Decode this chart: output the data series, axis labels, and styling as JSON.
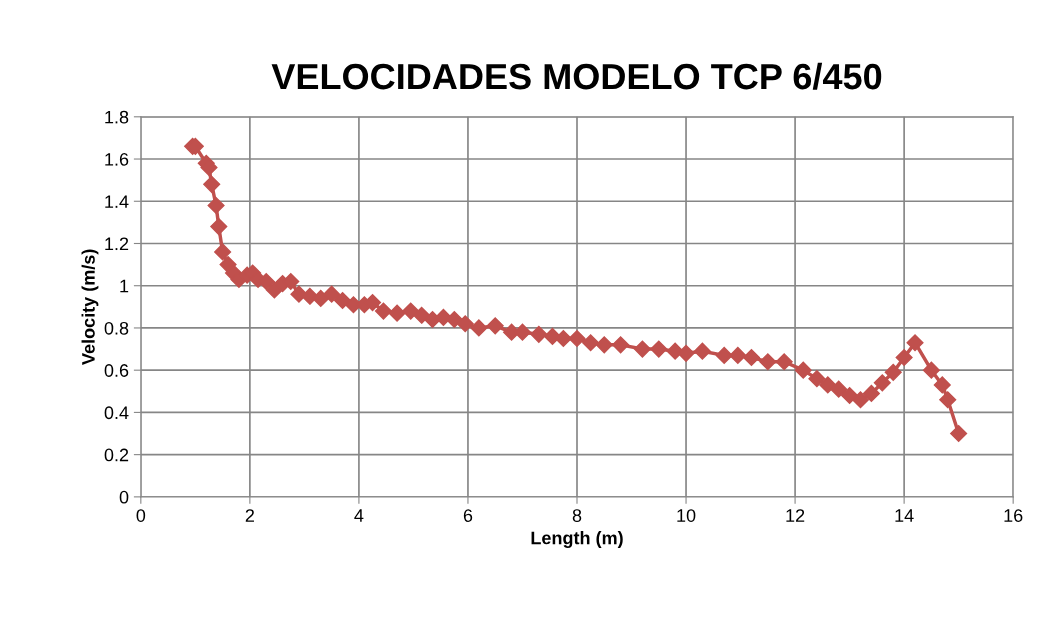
{
  "chart_data": {
    "type": "line",
    "title": "VELOCIDADES MODELO TCP 6/450",
    "xlabel": "Length (m)",
    "ylabel": "Velocity (m/s)",
    "xlim": [
      0,
      16
    ],
    "xticks": [
      0,
      2,
      4,
      6,
      8,
      10,
      12,
      14,
      16
    ],
    "ylim": [
      0,
      1.8
    ],
    "yticks": [
      0,
      0.2,
      0.4,
      0.6,
      0.8,
      1,
      1.2,
      1.4,
      1.6,
      1.8
    ],
    "grid": true,
    "legend": false,
    "marker": "diamond",
    "line_style": "solid",
    "series": [
      {
        "color": "#c0504d",
        "x": [
          0.95,
          1.0,
          1.2,
          1.25,
          1.3,
          1.38,
          1.43,
          1.5,
          1.6,
          1.7,
          1.8,
          1.95,
          2.05,
          2.15,
          2.3,
          2.45,
          2.6,
          2.75,
          2.9,
          3.1,
          3.3,
          3.5,
          3.7,
          3.9,
          4.1,
          4.25,
          4.45,
          4.7,
          4.95,
          5.15,
          5.35,
          5.55,
          5.75,
          5.95,
          6.2,
          6.5,
          6.8,
          7.0,
          7.3,
          7.55,
          7.75,
          8.0,
          8.25,
          8.5,
          8.8,
          9.2,
          9.5,
          9.8,
          10.0,
          10.3,
          10.7,
          10.95,
          11.2,
          11.5,
          11.8,
          12.15,
          12.4,
          12.6,
          12.8,
          13.0,
          13.2,
          13.4,
          13.6,
          13.8,
          14.0,
          14.2,
          14.5,
          14.7,
          14.8,
          15.0
        ],
        "values": [
          1.66,
          1.66,
          1.58,
          1.56,
          1.48,
          1.38,
          1.28,
          1.16,
          1.1,
          1.06,
          1.03,
          1.05,
          1.06,
          1.03,
          1.02,
          0.98,
          1.01,
          1.02,
          0.96,
          0.95,
          0.94,
          0.96,
          0.93,
          0.91,
          0.91,
          0.92,
          0.88,
          0.87,
          0.88,
          0.86,
          0.84,
          0.85,
          0.84,
          0.82,
          0.8,
          0.81,
          0.78,
          0.78,
          0.77,
          0.76,
          0.75,
          0.75,
          0.73,
          0.72,
          0.72,
          0.7,
          0.7,
          0.69,
          0.68,
          0.69,
          0.67,
          0.67,
          0.66,
          0.64,
          0.64,
          0.6,
          0.56,
          0.53,
          0.51,
          0.48,
          0.46,
          0.49,
          0.54,
          0.59,
          0.66,
          0.73,
          0.6,
          0.53,
          0.46,
          0.3
        ]
      }
    ]
  }
}
